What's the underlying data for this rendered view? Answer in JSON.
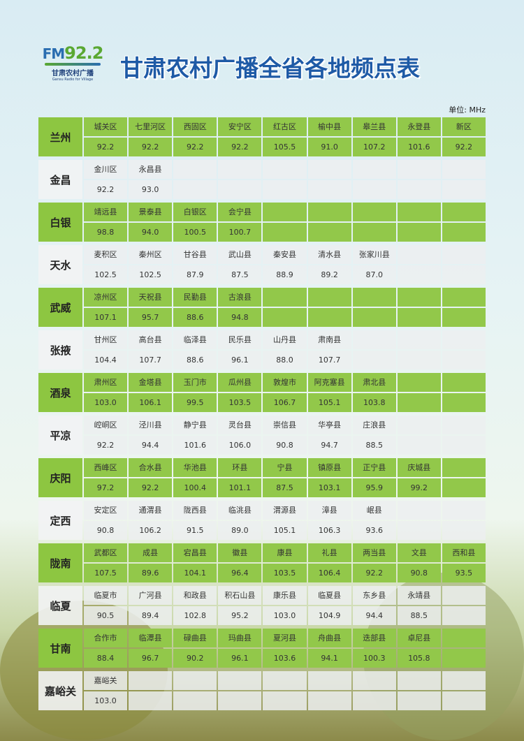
{
  "logo": {
    "fm": "FM",
    "freq": "92.2",
    "name_cn": "甘肃农村广播",
    "name_en": "Gansu Radio for Village"
  },
  "title": "甘肃农村广播全省各地频点表",
  "unit": "单位: MHz",
  "colors": {
    "green_row": "#8dc641",
    "gray_row": "#f2f3f4",
    "title": "#1e5aa6"
  },
  "regions": [
    {
      "name": "兰州",
      "style": "green",
      "counties": [
        "城关区",
        "七里河区",
        "西固区",
        "安宁区",
        "红古区",
        "榆中县",
        "皋兰县",
        "永登县",
        "新区"
      ],
      "freqs": [
        "92.2",
        "92.2",
        "92.2",
        "92.2",
        "105.5",
        "91.0",
        "107.2",
        "101.6",
        "92.2"
      ]
    },
    {
      "name": "金昌",
      "style": "gray",
      "counties": [
        "金川区",
        "永昌县"
      ],
      "freqs": [
        "92.2",
        "93.0"
      ]
    },
    {
      "name": "白银",
      "style": "green",
      "counties": [
        "靖远县",
        "景泰县",
        "白银区",
        "会宁县"
      ],
      "freqs": [
        "98.8",
        "94.0",
        "100.5",
        "100.7"
      ]
    },
    {
      "name": "天水",
      "style": "gray",
      "counties": [
        "麦积区",
        "秦州区",
        "甘谷县",
        "武山县",
        "秦安县",
        "清水县",
        "张家川县"
      ],
      "freqs": [
        "102.5",
        "102.5",
        "87.9",
        "87.5",
        "88.9",
        "89.2",
        "87.0"
      ]
    },
    {
      "name": "武威",
      "style": "green",
      "counties": [
        "凉州区",
        "天祝县",
        "民勤县",
        "古浪县"
      ],
      "freqs": [
        "107.1",
        "95.7",
        "88.6",
        "94.8"
      ]
    },
    {
      "name": "张掖",
      "style": "gray",
      "counties": [
        "甘州区",
        "高台县",
        "临泽县",
        "民乐县",
        "山丹县",
        "肃南县"
      ],
      "freqs": [
        "104.4",
        "107.7",
        "88.6",
        "96.1",
        "88.0",
        "107.7"
      ]
    },
    {
      "name": "酒泉",
      "style": "green",
      "counties": [
        "肃州区",
        "金塔县",
        "玉门市",
        "瓜州县",
        "敦煌市",
        "阿克塞县",
        "肃北县"
      ],
      "freqs": [
        "103.0",
        "106.1",
        "99.5",
        "103.5",
        "106.7",
        "105.1",
        "103.8"
      ]
    },
    {
      "name": "平凉",
      "style": "gray",
      "counties": [
        "崆峒区",
        "泾川县",
        "静宁县",
        "灵台县",
        "崇信县",
        "华亭县",
        "庄浪县"
      ],
      "freqs": [
        "92.2",
        "94.4",
        "101.6",
        "106.0",
        "90.8",
        "94.7",
        "88.5"
      ]
    },
    {
      "name": "庆阳",
      "style": "green",
      "counties": [
        "西峰区",
        "合水县",
        "华池县",
        "环县",
        "宁县",
        "镇原县",
        "正宁县",
        "庆城县"
      ],
      "freqs": [
        "97.2",
        "92.2",
        "100.4",
        "101.1",
        "87.5",
        "103.1",
        "95.9",
        "99.2"
      ]
    },
    {
      "name": "定西",
      "style": "gray",
      "counties": [
        "安定区",
        "通渭县",
        "陇西县",
        "临洮县",
        "渭源县",
        "漳县",
        "岷县"
      ],
      "freqs": [
        "90.8",
        "106.2",
        "91.5",
        "89.0",
        "105.1",
        "106.3",
        "93.6"
      ]
    },
    {
      "name": "陇南",
      "style": "green",
      "counties": [
        "武都区",
        "成县",
        "宕昌县",
        "徽县",
        "康县",
        "礼县",
        "两当县",
        "文县",
        "西和县"
      ],
      "freqs": [
        "107.5",
        "89.6",
        "104.1",
        "96.4",
        "103.5",
        "106.4",
        "92.2",
        "90.8",
        "93.5"
      ]
    },
    {
      "name": "临夏",
      "style": "gray",
      "counties": [
        "临夏市",
        "广河县",
        "和政县",
        "积石山县",
        "康乐县",
        "临夏县",
        "东乡县",
        "永靖县"
      ],
      "freqs": [
        "90.5",
        "89.4",
        "102.8",
        "95.2",
        "103.0",
        "104.9",
        "94.4",
        "88.5"
      ]
    },
    {
      "name": "甘南",
      "style": "green",
      "counties": [
        "合作市",
        "临潭县",
        "碌曲县",
        "玛曲县",
        "夏河县",
        "舟曲县",
        "迭部县",
        "卓尼县"
      ],
      "freqs": [
        "88.4",
        "96.7",
        "90.2",
        "96.1",
        "103.6",
        "94.1",
        "100.3",
        "105.8"
      ]
    },
    {
      "name": "嘉峪关",
      "style": "gray",
      "counties": [
        "嘉峪关"
      ],
      "freqs": [
        "103.0"
      ]
    }
  ]
}
